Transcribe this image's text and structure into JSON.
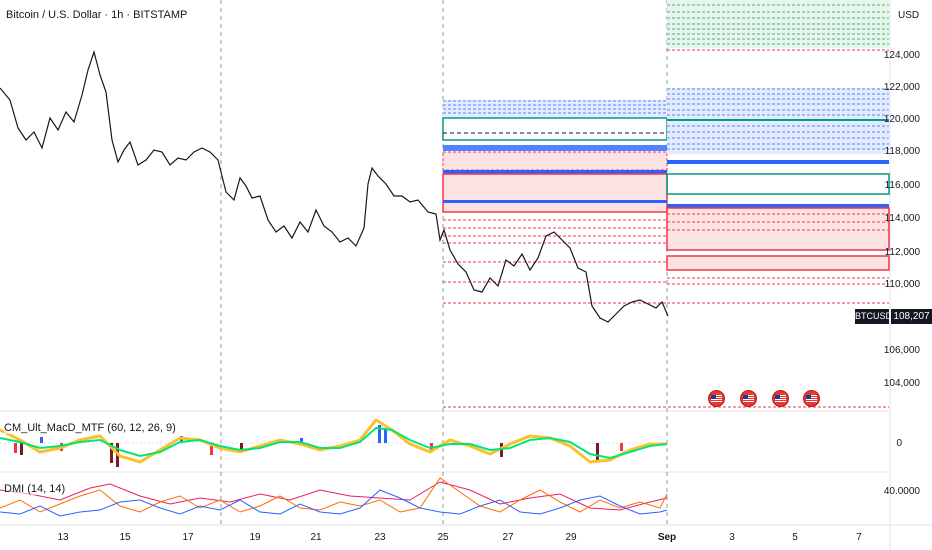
{
  "header": {
    "title": "Bitcoin / U.S. Dollar · 1h · BITSTAMP"
  },
  "price_axis": {
    "currency": "USD",
    "ticks": [
      "124,000",
      "122,000",
      "120,000",
      "118,000",
      "116,000",
      "114,000",
      "112,000",
      "110,000",
      "106,000",
      "104,000"
    ],
    "macd_tick": "0",
    "dmi_tick": "40.0000"
  },
  "last_price": {
    "symbol": "BTCUSD",
    "value": "108,207"
  },
  "indicators": {
    "macd": "CM_Ult_MacD_MTF (60, 12, 26, 9)",
    "dmi": "DMI (14, 14)"
  },
  "date_axis": [
    "13",
    "15",
    "17",
    "19",
    "21",
    "23",
    "25",
    "27",
    "29",
    "Sep",
    "3",
    "5",
    "7"
  ],
  "events": {
    "count": 4,
    "icon": "us-flag-icon"
  },
  "colors": {
    "up_line": "#2962ff",
    "zone_red": "#f23645",
    "zone_green": "#089981",
    "zone_blue": "#2962ff",
    "candle": "#131722"
  }
}
